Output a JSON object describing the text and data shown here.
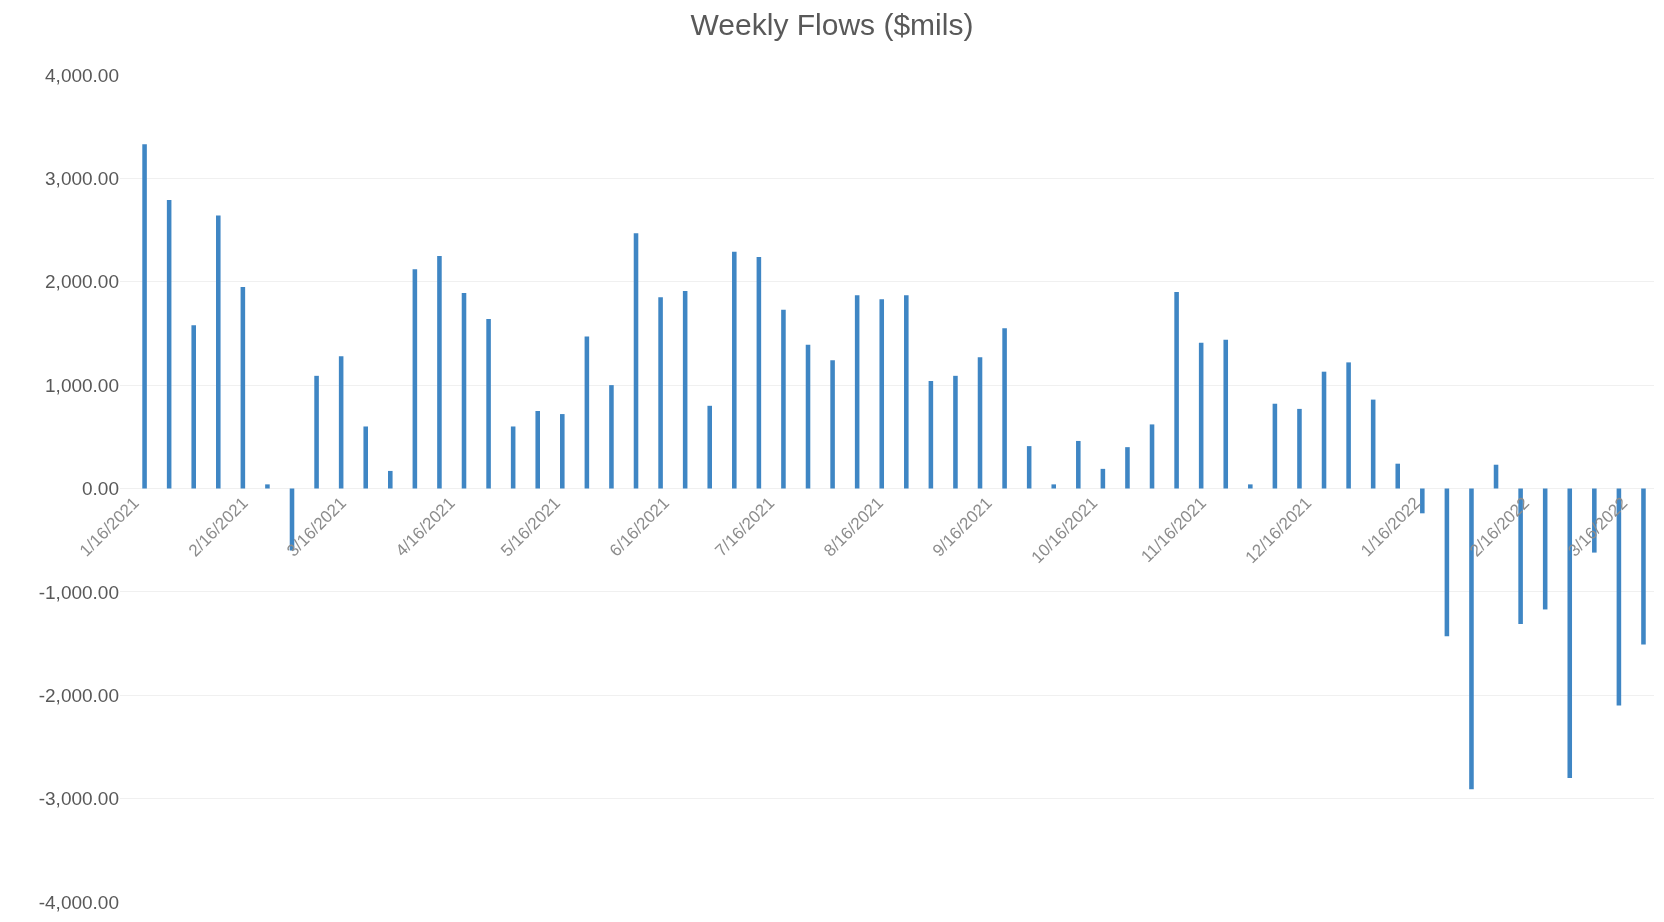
{
  "chart_data": {
    "type": "bar",
    "title": "Weekly Flows ($mils)",
    "x": [
      "2021-01-19",
      "2021-01-26",
      "2021-02-02",
      "2021-02-09",
      "2021-02-16",
      "2021-02-23",
      "2021-03-02",
      "2021-03-09",
      "2021-03-16",
      "2021-03-23",
      "2021-03-30",
      "2021-04-06",
      "2021-04-13",
      "2021-04-20",
      "2021-04-27",
      "2021-05-04",
      "2021-05-11",
      "2021-05-18",
      "2021-05-25",
      "2021-06-01",
      "2021-06-08",
      "2021-06-15",
      "2021-06-22",
      "2021-06-29",
      "2021-07-06",
      "2021-07-13",
      "2021-07-20",
      "2021-07-27",
      "2021-08-03",
      "2021-08-10",
      "2021-08-17",
      "2021-08-24",
      "2021-08-31",
      "2021-09-07",
      "2021-09-14",
      "2021-09-21",
      "2021-09-28",
      "2021-10-05",
      "2021-10-12",
      "2021-10-19",
      "2021-10-26",
      "2021-11-02",
      "2021-11-09",
      "2021-11-16",
      "2021-11-23",
      "2021-11-30",
      "2021-12-07",
      "2021-12-14",
      "2021-12-21",
      "2021-12-28",
      "2022-01-04",
      "2022-01-11",
      "2022-01-18",
      "2022-01-25",
      "2022-02-01",
      "2022-02-08",
      "2022-02-15",
      "2022-02-22",
      "2022-03-01",
      "2022-03-08",
      "2022-03-15",
      "2022-03-22"
    ],
    "values": [
      3330,
      2790,
      1580,
      2640,
      1950,
      40,
      -600,
      1090,
      1280,
      600,
      170,
      2120,
      2250,
      1890,
      1640,
      600,
      750,
      720,
      1470,
      1000,
      2470,
      1850,
      1910,
      800,
      2290,
      2240,
      1730,
      1390,
      1240,
      1870,
      1830,
      1870,
      1040,
      1090,
      1270,
      1550,
      410,
      40,
      460,
      190,
      400,
      620,
      1900,
      1410,
      1440,
      40,
      820,
      770,
      1130,
      1220,
      860,
      240,
      -240,
      -1430,
      -2910,
      230,
      -1310,
      -1170,
      -2800,
      -620,
      -2100,
      -1510
    ],
    "color": "#3f86c4",
    "xlim": [
      "2021-01-12",
      "2022-03-25"
    ],
    "xticks": [
      {
        "value": "2021-01-16",
        "label": "1/16/2021"
      },
      {
        "value": "2021-02-16",
        "label": "2/16/2021"
      },
      {
        "value": "2021-03-16",
        "label": "3/16/2021"
      },
      {
        "value": "2021-04-16",
        "label": "4/16/2021"
      },
      {
        "value": "2021-05-16",
        "label": "5/16/2021"
      },
      {
        "value": "2021-06-16",
        "label": "6/16/2021"
      },
      {
        "value": "2021-07-16",
        "label": "7/16/2021"
      },
      {
        "value": "2021-08-16",
        "label": "8/16/2021"
      },
      {
        "value": "2021-09-16",
        "label": "9/16/2021"
      },
      {
        "value": "2021-10-16",
        "label": "10/16/2021"
      },
      {
        "value": "2021-11-16",
        "label": "11/16/2021"
      },
      {
        "value": "2021-12-16",
        "label": "12/16/2021"
      },
      {
        "value": "2022-01-16",
        "label": "1/16/2022"
      },
      {
        "value": "2022-02-16",
        "label": "2/16/2022"
      },
      {
        "value": "2022-03-16",
        "label": "3/16/2022"
      }
    ],
    "ylim": [
      -4000,
      4000
    ],
    "yticks": [
      {
        "value": -4000,
        "label": "-4,000.00"
      },
      {
        "value": -3000,
        "label": "-3,000.00"
      },
      {
        "value": -2000,
        "label": "-2,000.00"
      },
      {
        "value": -1000,
        "label": "-1,000.00"
      },
      {
        "value": 0,
        "label": "0.00"
      },
      {
        "value": 1000,
        "label": "1,000.00"
      },
      {
        "value": 2000,
        "label": "2,000.00"
      },
      {
        "value": 3000,
        "label": "3,000.00"
      },
      {
        "value": 4000,
        "label": "4,000.00"
      }
    ],
    "grid": "y"
  }
}
